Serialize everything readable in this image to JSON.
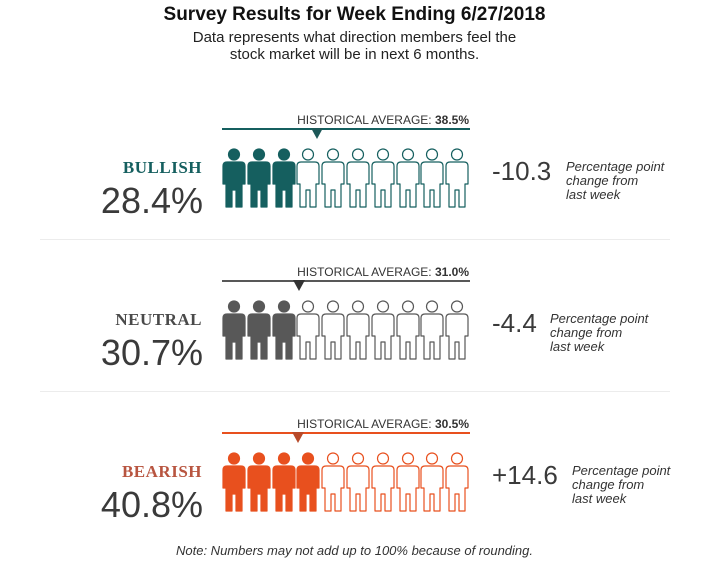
{
  "chart_data": {
    "type": "pictograph",
    "title": "Survey Results for Week Ending 6/27/2018",
    "subtitle_line1": "Data represents what direction members feel the",
    "subtitle_line2": "stock market will be in next 6 months.",
    "hist_label_prefix": "HISTORICAL AVERAGE:",
    "total_icons": 10,
    "categories": [
      {
        "key": "bullish",
        "label": "BULLISH",
        "value_label": "28.4%",
        "value": 28.4,
        "historical_average": 38.5,
        "historical_label": "38.5%",
        "change_label": "-10.3",
        "change": -10.3,
        "color": "#155f5f",
        "filled_icons": 3
      },
      {
        "key": "neutral",
        "label": "NEUTRAL",
        "value_label": "30.7%",
        "value": 30.7,
        "historical_average": 31.0,
        "historical_label": "31.0%",
        "change_label": "-4.4",
        "change": -4.4,
        "color": "#585858",
        "filled_icons": 3
      },
      {
        "key": "bearish",
        "label": "BEARISH",
        "value_label": "40.8%",
        "value": 40.8,
        "historical_average": 30.5,
        "historical_label": "30.5%",
        "change_label": "+14.6",
        "change": 14.6,
        "color": "#e8501e",
        "filled_icons": 4
      }
    ],
    "label_colors": {
      "bullish": "#155f5f",
      "neutral": "#4a4a4a",
      "bearish": "#b85540"
    },
    "change_note_line1": "Percentage point",
    "change_note_line2": "change from",
    "change_note_line3": "last week",
    "footnote": "Note: Numbers may not add up to 100% because of rounding."
  }
}
